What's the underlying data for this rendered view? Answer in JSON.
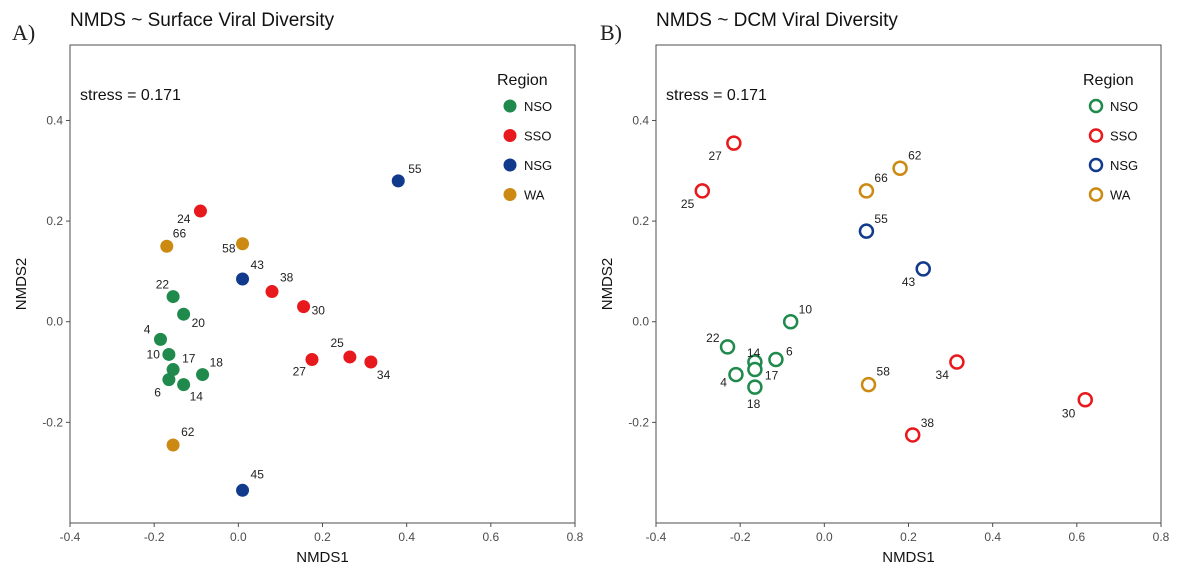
{
  "colors": {
    "NSO": "#1f8a4c",
    "SSO": "#e8191d",
    "NSG": "#123a8c",
    "WA": "#cc8a12"
  },
  "chart_data": [
    {
      "type": "scatter",
      "panel_label": "A)",
      "title": "NMDS ~ Surface Viral Diversity",
      "xlabel": "NMDS1",
      "ylabel": "NMDS2",
      "xlim": [
        -0.4,
        0.8
      ],
      "ylim": [
        -0.4,
        0.55
      ],
      "xticks": [
        "-0.4",
        "-0.2",
        "0.0",
        "0.2",
        "0.4",
        "0.6",
        "0.8"
      ],
      "yticks": [
        "-0.2",
        "0.0",
        "0.2",
        "0.4"
      ],
      "annotation": "stress = 0.171",
      "marker": "filled",
      "grid": false,
      "legend": {
        "title": "Region",
        "placement": "top-right",
        "entries": [
          "NSO",
          "SSO",
          "NSG",
          "WA"
        ]
      },
      "points": [
        {
          "label": "55",
          "region": "NSG",
          "x": 0.38,
          "y": 0.28
        },
        {
          "label": "43",
          "region": "NSG",
          "x": 0.01,
          "y": 0.085
        },
        {
          "label": "45",
          "region": "NSG",
          "x": 0.01,
          "y": -0.335
        },
        {
          "label": "24",
          "region": "SSO",
          "x": -0.09,
          "y": 0.22
        },
        {
          "label": "38",
          "region": "SSO",
          "x": 0.08,
          "y": 0.06
        },
        {
          "label": "30",
          "region": "SSO",
          "x": 0.155,
          "y": 0.03
        },
        {
          "label": "25",
          "region": "SSO",
          "x": 0.265,
          "y": -0.07
        },
        {
          "label": "27",
          "region": "SSO",
          "x": 0.175,
          "y": -0.075
        },
        {
          "label": "34",
          "region": "SSO",
          "x": 0.315,
          "y": -0.08
        },
        {
          "label": "66",
          "region": "WA",
          "x": -0.17,
          "y": 0.15
        },
        {
          "label": "58",
          "region": "WA",
          "x": 0.01,
          "y": 0.155
        },
        {
          "label": "62",
          "region": "WA",
          "x": -0.155,
          "y": -0.245
        },
        {
          "label": "22",
          "region": "NSO",
          "x": -0.155,
          "y": 0.05
        },
        {
          "label": "20",
          "region": "NSO",
          "x": -0.13,
          "y": 0.015
        },
        {
          "label": "4",
          "region": "NSO",
          "x": -0.185,
          "y": -0.035
        },
        {
          "label": "10",
          "region": "NSO",
          "x": -0.165,
          "y": -0.065
        },
        {
          "label": "17",
          "region": "NSO",
          "x": -0.155,
          "y": -0.095
        },
        {
          "label": "18",
          "region": "NSO",
          "x": -0.085,
          "y": -0.105
        },
        {
          "label": "6",
          "region": "NSO",
          "x": -0.165,
          "y": -0.115
        },
        {
          "label": "14",
          "region": "NSO",
          "x": -0.13,
          "y": -0.125
        }
      ]
    },
    {
      "type": "scatter",
      "panel_label": "B)",
      "title": "NMDS ~ DCM Viral Diversity",
      "xlabel": "NMDS1",
      "ylabel": "NMDS2",
      "xlim": [
        -0.4,
        0.8
      ],
      "ylim": [
        -0.4,
        0.55
      ],
      "xticks": [
        "-0.4",
        "-0.2",
        "0.0",
        "0.2",
        "0.4",
        "0.6",
        "0.8"
      ],
      "yticks": [
        "-0.2",
        "0.0",
        "0.2",
        "0.4"
      ],
      "annotation": "stress = 0.171",
      "marker": "open",
      "grid": false,
      "legend": {
        "title": "Region",
        "placement": "top-right",
        "entries": [
          "NSO",
          "SSO",
          "NSG",
          "WA"
        ]
      },
      "points": [
        {
          "label": "27",
          "region": "SSO",
          "x": -0.215,
          "y": 0.355
        },
        {
          "label": "25",
          "region": "SSO",
          "x": -0.29,
          "y": 0.26
        },
        {
          "label": "34",
          "region": "SSO",
          "x": 0.315,
          "y": -0.08
        },
        {
          "label": "38",
          "region": "SSO",
          "x": 0.21,
          "y": -0.225
        },
        {
          "label": "30",
          "region": "SSO",
          "x": 0.62,
          "y": -0.155
        },
        {
          "label": "62",
          "region": "WA",
          "x": 0.18,
          "y": 0.305
        },
        {
          "label": "66",
          "region": "WA",
          "x": 0.1,
          "y": 0.26
        },
        {
          "label": "58",
          "region": "WA",
          "x": 0.105,
          "y": -0.125
        },
        {
          "label": "55",
          "region": "NSG",
          "x": 0.1,
          "y": 0.18
        },
        {
          "label": "43",
          "region": "NSG",
          "x": 0.235,
          "y": 0.105
        },
        {
          "label": "10",
          "region": "NSO",
          "x": -0.08,
          "y": 0.0
        },
        {
          "label": "22",
          "region": "NSO",
          "x": -0.23,
          "y": -0.05
        },
        {
          "label": "6",
          "region": "NSO",
          "x": -0.115,
          "y": -0.075
        },
        {
          "label": "14",
          "region": "NSO",
          "x": -0.165,
          "y": -0.08
        },
        {
          "label": "17",
          "region": "NSO",
          "x": -0.165,
          "y": -0.095
        },
        {
          "label": "4",
          "region": "NSO",
          "x": -0.21,
          "y": -0.105
        },
        {
          "label": "18",
          "region": "NSO",
          "x": -0.165,
          "y": -0.13
        }
      ]
    }
  ]
}
